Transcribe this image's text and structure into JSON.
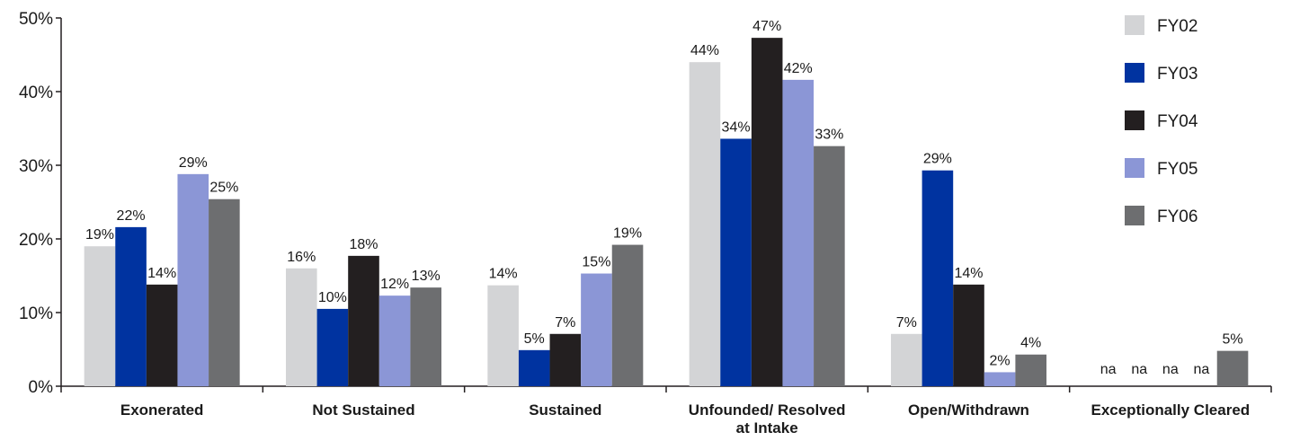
{
  "chart_data": {
    "type": "bar",
    "categories": [
      "Exonerated",
      "Not Sustained",
      "Sustained",
      "Unfounded/ Resolved at Intake",
      "Open/Withdrawn",
      "Exceptionally Cleared"
    ],
    "category_lines": [
      [
        "Exonerated"
      ],
      [
        "Not Sustained"
      ],
      [
        "Sustained"
      ],
      [
        "Unfounded/ Resolved",
        "at Intake"
      ],
      [
        "Open/Withdrawn"
      ],
      [
        "Exceptionally Cleared"
      ]
    ],
    "ylim": [
      0,
      50
    ],
    "yticks": [
      0,
      10,
      20,
      30,
      40,
      50
    ],
    "ytick_labels": [
      "0%",
      "10%",
      "20%",
      "30%",
      "40%",
      "50%"
    ],
    "legend_position": "top-right",
    "grid": false,
    "series": [
      {
        "name": "FY02",
        "color": "#d3d4d6",
        "values": [
          19,
          16,
          13.7,
          44,
          7.1,
          null
        ],
        "labels": [
          "19%",
          "16%",
          "14%",
          "44%",
          "7%",
          "na"
        ]
      },
      {
        "name": "FY03",
        "color": "#0033a0",
        "values": [
          21.6,
          10.5,
          4.9,
          33.6,
          29.3,
          null
        ],
        "labels": [
          "22%",
          "10%",
          "5%",
          "34%",
          "29%",
          "na"
        ]
      },
      {
        "name": "FY04",
        "color": "#231f20",
        "values": [
          13.8,
          17.7,
          7.1,
          47.3,
          13.8,
          null
        ],
        "labels": [
          "14%",
          "18%",
          "7%",
          "47%",
          "14%",
          "na"
        ]
      },
      {
        "name": "FY05",
        "color": "#8b96d6",
        "values": [
          28.8,
          12.3,
          15.3,
          41.6,
          1.9,
          null
        ],
        "labels": [
          "29%",
          "12%",
          "15%",
          "42%",
          "2%",
          "na"
        ]
      },
      {
        "name": "FY06",
        "color": "#6d6e70",
        "values": [
          25.4,
          13.4,
          19.2,
          32.6,
          4.3,
          4.8
        ],
        "labels": [
          "25%",
          "13%",
          "19%",
          "33%",
          "4%",
          "5%"
        ]
      }
    ]
  }
}
